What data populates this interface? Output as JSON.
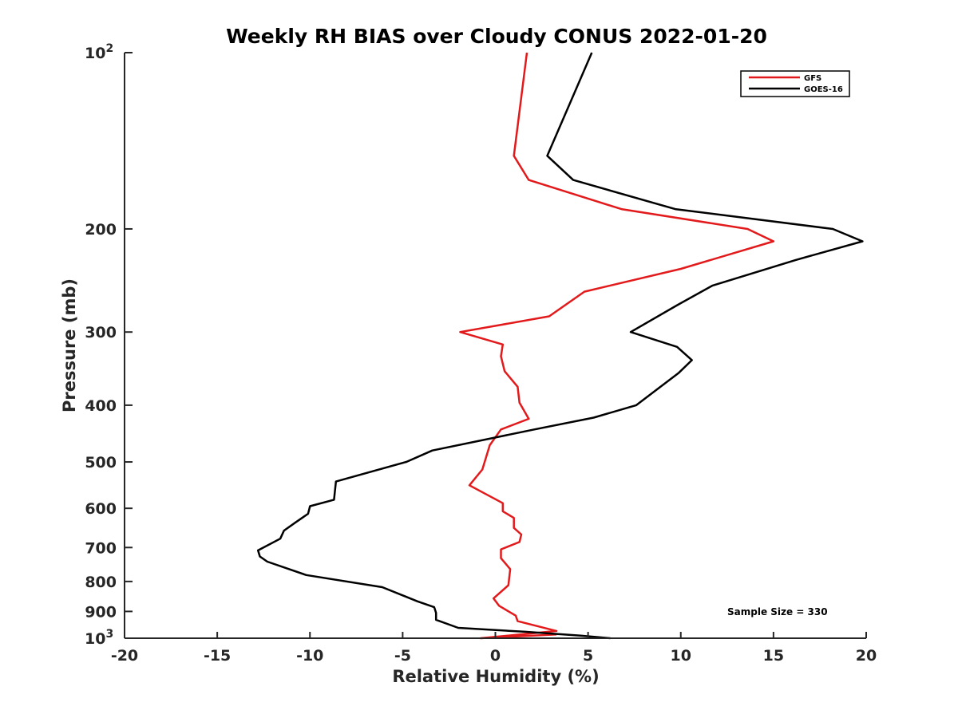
{
  "chart_data": {
    "type": "line",
    "title": "Weekly RH BIAS over Cloudy CONUS 2022-01-20",
    "xlabel": "Relative Humidity (%)",
    "ylabel": "Pressure (mb)",
    "xlim": [
      -20,
      20
    ],
    "ylim": [
      100,
      1000
    ],
    "y_scale": "log",
    "y_reversed": true,
    "x_ticks": [
      -20,
      -15,
      -10,
      -5,
      0,
      5,
      10,
      15,
      20
    ],
    "x_tick_labels": [
      "-20",
      "-15",
      "-10",
      "-5",
      "0",
      "5",
      "10",
      "15",
      "20"
    ],
    "y_ticks": [
      100,
      200,
      300,
      400,
      500,
      600,
      700,
      800,
      900,
      1000
    ],
    "y_tick_labels": [
      "10^2",
      "200",
      "300",
      "400",
      "500",
      "600",
      "700",
      "800",
      "900",
      "10^3"
    ],
    "legend_position": "top-right",
    "grid": false,
    "annotation": "Sample Size = 330",
    "series": [
      {
        "name": "GFS",
        "color": "#e31a1c",
        "points": [
          [
            1.7,
            100
          ],
          [
            1.0,
            150
          ],
          [
            1.8,
            165
          ],
          [
            6.8,
            185
          ],
          [
            13.6,
            200
          ],
          [
            15.0,
            210
          ],
          [
            10.0,
            234
          ],
          [
            4.8,
            256
          ],
          [
            2.9,
            282
          ],
          [
            -1.9,
            300
          ],
          [
            0.4,
            315
          ],
          [
            0.3,
            330
          ],
          [
            0.5,
            350
          ],
          [
            1.2,
            372
          ],
          [
            1.3,
            396
          ],
          [
            1.8,
            422
          ],
          [
            0.3,
            440
          ],
          [
            -0.3,
            468
          ],
          [
            -0.7,
            515
          ],
          [
            -1.4,
            548
          ],
          [
            0.4,
            588
          ],
          [
            0.4,
            607
          ],
          [
            1.0,
            623
          ],
          [
            1.0,
            648
          ],
          [
            1.4,
            665
          ],
          [
            1.3,
            685
          ],
          [
            0.3,
            705
          ],
          [
            0.3,
            730
          ],
          [
            0.8,
            762
          ],
          [
            0.7,
            812
          ],
          [
            -0.1,
            855
          ],
          [
            0.2,
            880
          ],
          [
            1.1,
            915
          ],
          [
            1.2,
            935
          ],
          [
            3.3,
            972
          ],
          [
            -0.8,
            1000
          ],
          [
            3.3,
            985
          ]
        ]
      },
      {
        "name": "GOES-16",
        "color": "#000000",
        "points": [
          [
            5.2,
            100
          ],
          [
            2.8,
            150
          ],
          [
            4.2,
            165
          ],
          [
            9.7,
            185
          ],
          [
            18.2,
            200
          ],
          [
            19.8,
            210
          ],
          [
            16.2,
            226
          ],
          [
            11.7,
            250
          ],
          [
            9.8,
            270
          ],
          [
            7.3,
            300
          ],
          [
            9.8,
            318
          ],
          [
            10.6,
            335
          ],
          [
            9.9,
            352
          ],
          [
            7.6,
            400
          ],
          [
            5.3,
            420
          ],
          [
            2.1,
            440
          ],
          [
            -3.4,
            478
          ],
          [
            -4.8,
            500
          ],
          [
            -8.6,
            540
          ],
          [
            -8.7,
            580
          ],
          [
            -10.0,
            595
          ],
          [
            -10.1,
            613
          ],
          [
            -10.8,
            635
          ],
          [
            -11.4,
            655
          ],
          [
            -11.6,
            676
          ],
          [
            -12.8,
            708
          ],
          [
            -12.7,
            725
          ],
          [
            -12.3,
            740
          ],
          [
            -10.2,
            780
          ],
          [
            -6.1,
            818
          ],
          [
            -5.0,
            845
          ],
          [
            -4.2,
            865
          ],
          [
            -3.3,
            885
          ],
          [
            -3.2,
            905
          ],
          [
            -3.2,
            930
          ],
          [
            -2.0,
            960
          ],
          [
            1.6,
            975
          ],
          [
            4.6,
            990
          ],
          [
            6.2,
            1000
          ]
        ]
      }
    ]
  }
}
